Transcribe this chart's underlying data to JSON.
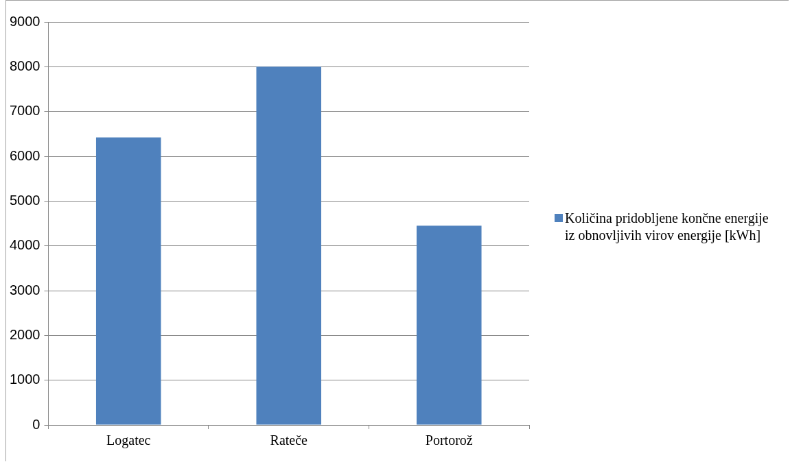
{
  "chart_data": {
    "type": "bar",
    "categories": [
      "Logatec",
      "Rateče",
      "Portorož"
    ],
    "series": [
      {
        "name": "Količina pridobljene končne energije iz obnovljivih virov energije [kWh]",
        "color": "#4f81bd",
        "values": [
          6420,
          8000,
          4450
        ]
      }
    ],
    "ylim": [
      0,
      9000
    ],
    "yticks": [
      0,
      1000,
      2000,
      3000,
      4000,
      5000,
      6000,
      7000,
      8000,
      9000
    ],
    "grid": "y",
    "legend": "right"
  }
}
